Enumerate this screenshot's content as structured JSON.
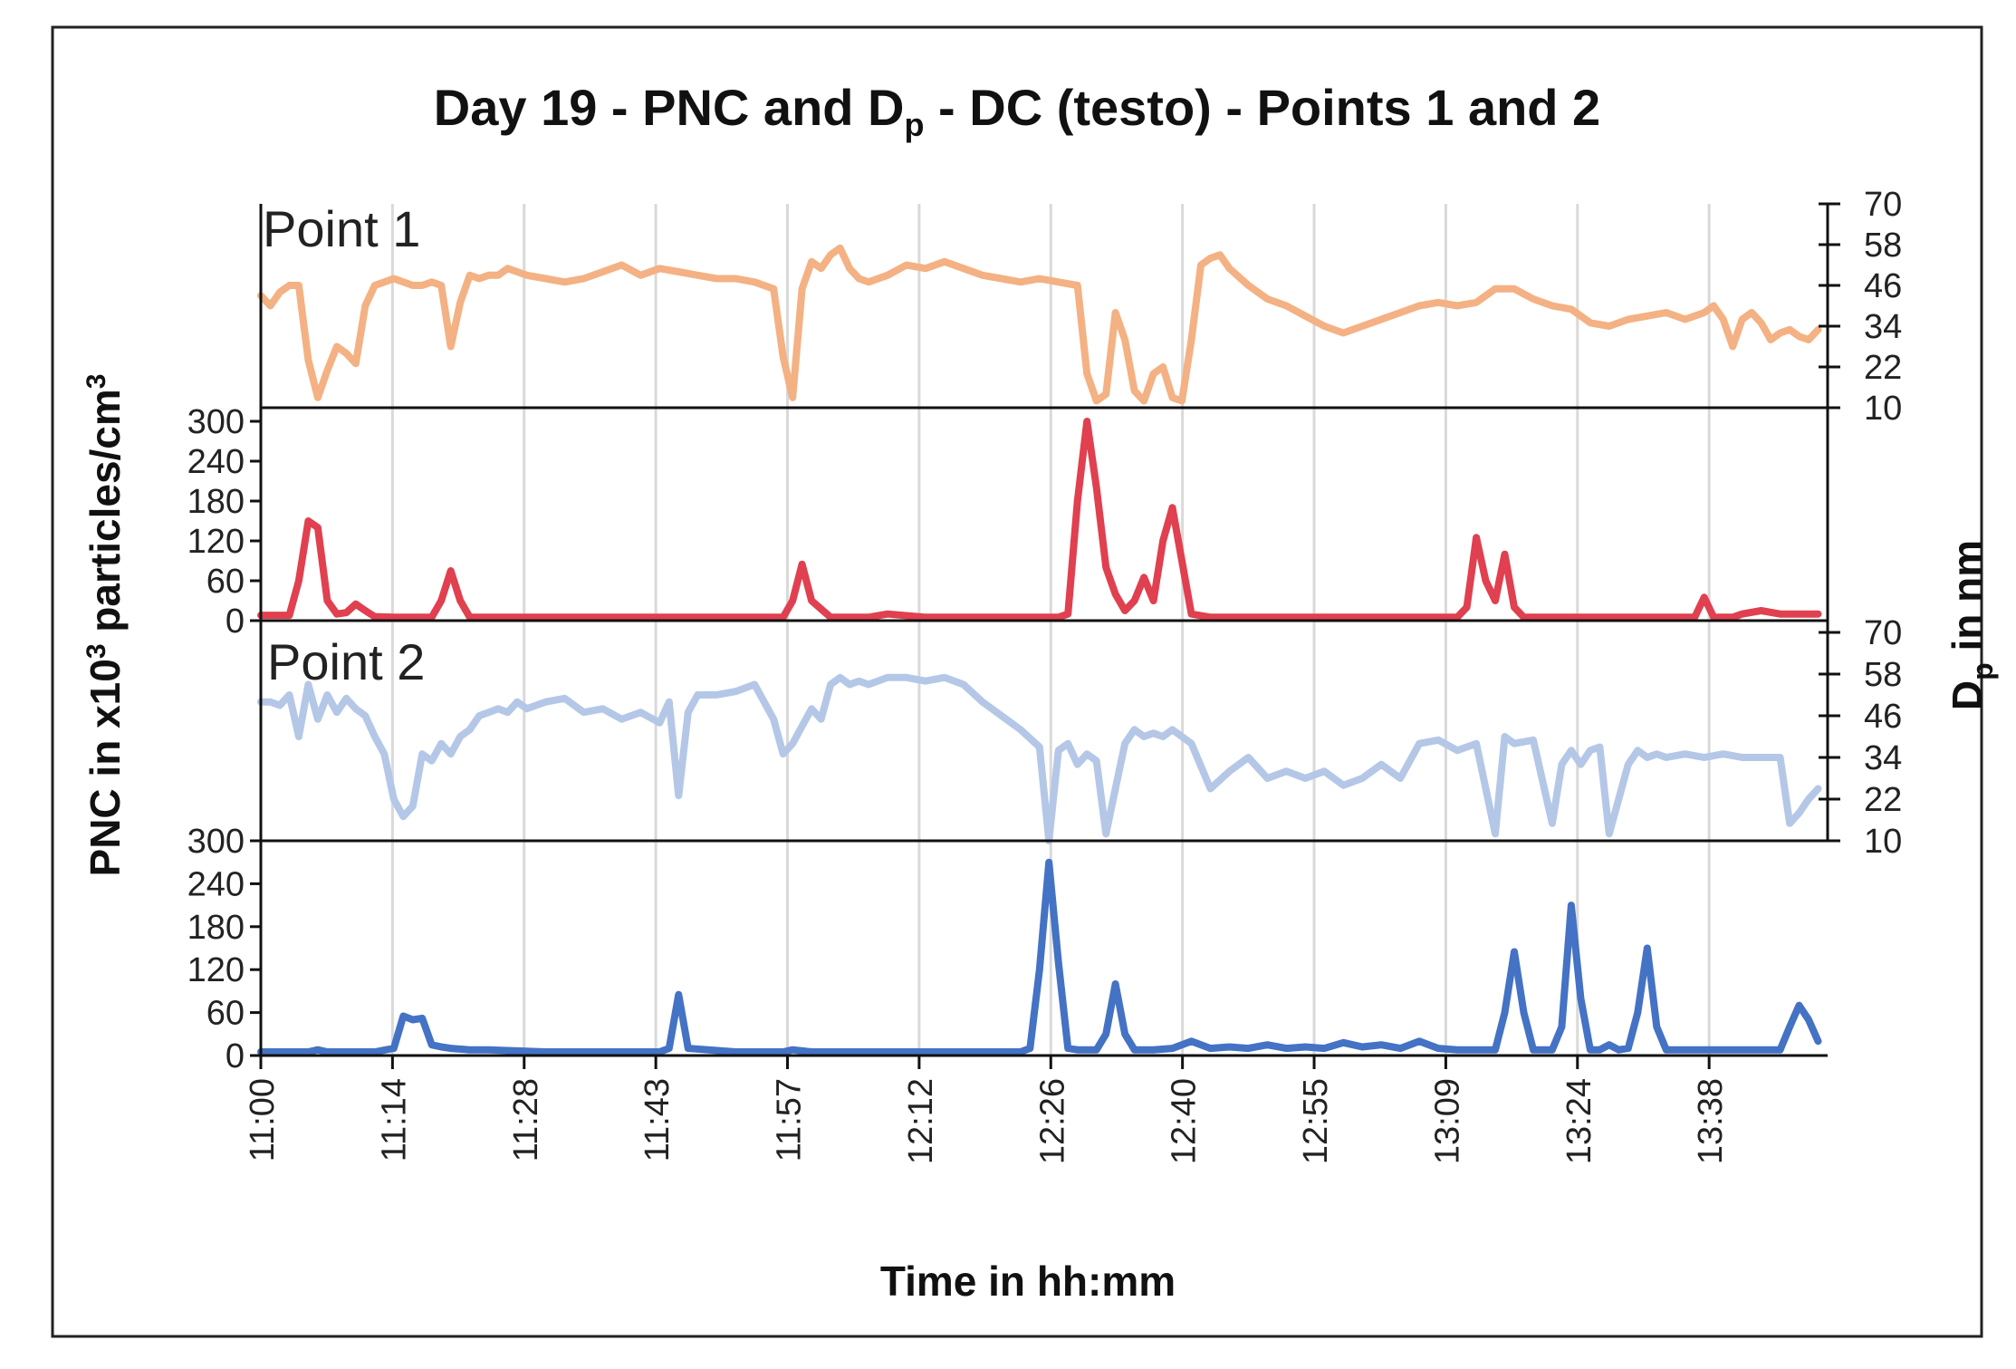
{
  "chart_data": {
    "type": "line",
    "title": "Day 19 - PNC and D",
    "title_subscript": "p",
    "title_suffix": " - DC (testo) - Points 1 and 2",
    "xlabel": "Time in hh:mm",
    "ylabel_left": "PNC in x10",
    "ylabel_left_sup": "3",
    "ylabel_left_mid": " particles/cm",
    "ylabel_left_sup2": "3",
    "ylabel_right": "D",
    "ylabel_right_sub": "p",
    "ylabel_right_suffix": " in nm",
    "x_ticks": [
      "11:00",
      "11:14",
      "11:28",
      "11:43",
      "11:57",
      "12:12",
      "12:26",
      "12:40",
      "12:55",
      "13:09",
      "13:24",
      "13:38"
    ],
    "x_range_minutes": [
      0,
      165
    ],
    "panel_labels": [
      "Point 1",
      "Point 2"
    ],
    "pnc_ticks": [
      "0",
      "60",
      "120",
      "180",
      "240",
      "300"
    ],
    "dp_ticks": [
      "10",
      "22",
      "34",
      "46",
      "58",
      "70"
    ],
    "pnc_range": [
      0,
      300
    ],
    "dp_range": [
      10,
      70
    ],
    "colors": {
      "dp_point1": "#f4b183",
      "pnc_point1": "#e0404f",
      "dp_point2": "#b4c7e7",
      "pnc_point2": "#4472c4"
    },
    "series": [
      {
        "name": "Dp Point 1",
        "panel": "dp1",
        "x": [
          0,
          1,
          2,
          3,
          4,
          5,
          6,
          7,
          8,
          9,
          10,
          11,
          12,
          13,
          14,
          15,
          16,
          17,
          18,
          19,
          20,
          21,
          22,
          23,
          24,
          25,
          26,
          27,
          28,
          30,
          32,
          34,
          36,
          38,
          40,
          42,
          44,
          46,
          48,
          50,
          52,
          54,
          55,
          56,
          57,
          58,
          59,
          60,
          61,
          62,
          63,
          64,
          66,
          68,
          70,
          72,
          74,
          76,
          78,
          80,
          82,
          84,
          86,
          87,
          88,
          89,
          90,
          91,
          92,
          93,
          94,
          95,
          96,
          97,
          98,
          99,
          100,
          101,
          102,
          104,
          106,
          108,
          110,
          112,
          114,
          116,
          118,
          120,
          122,
          124,
          126,
          128,
          130,
          132,
          134,
          136,
          138,
          140,
          142,
          144,
          146,
          148,
          150,
          152,
          153,
          154,
          155,
          156,
          157,
          158,
          159,
          160,
          161,
          162,
          163,
          164
        ],
        "values": [
          43,
          40,
          44,
          46,
          46,
          24,
          13,
          21,
          28,
          26,
          23,
          40,
          46,
          47,
          48,
          47,
          46,
          46,
          47,
          46,
          28,
          41,
          49,
          48,
          49,
          49,
          51,
          50,
          49,
          48,
          47,
          48,
          50,
          52,
          49,
          51,
          50,
          49,
          48,
          48,
          47,
          45,
          25,
          13,
          45,
          53,
          51,
          55,
          57,
          51,
          48,
          47,
          49,
          52,
          51,
          53,
          51,
          49,
          48,
          47,
          48,
          47,
          46,
          20,
          12,
          14,
          38,
          30,
          15,
          12,
          20,
          22,
          13,
          12,
          30,
          52,
          54,
          55,
          51,
          46,
          42,
          40,
          37,
          34,
          32,
          34,
          36,
          38,
          40,
          41,
          40,
          41,
          45,
          45,
          42,
          40,
          39,
          35,
          34,
          36,
          37,
          38,
          36,
          38,
          40,
          36,
          28,
          36,
          38,
          35,
          30,
          32,
          33,
          31,
          30,
          33
        ]
      },
      {
        "name": "PNC Point 1",
        "panel": "pnc1",
        "x": [
          0,
          3,
          4,
          5,
          6,
          7,
          8,
          9,
          10,
          11,
          12,
          14,
          16,
          18,
          19,
          20,
          21,
          22,
          24,
          30,
          40,
          50,
          52,
          54,
          55,
          56,
          57,
          58,
          60,
          62,
          64,
          66,
          70,
          80,
          84,
          85,
          86,
          87,
          88,
          89,
          90,
          91,
          92,
          93,
          94,
          95,
          96,
          97,
          98,
          100,
          110,
          120,
          126,
          127,
          128,
          129,
          130,
          131,
          132,
          133,
          134,
          140,
          150,
          151,
          152,
          153,
          154,
          155,
          156,
          158,
          160,
          162,
          164
        ],
        "values": [
          8,
          8,
          60,
          150,
          140,
          30,
          10,
          12,
          25,
          15,
          6,
          5,
          5,
          5,
          30,
          75,
          30,
          5,
          5,
          5,
          5,
          5,
          5,
          5,
          5,
          30,
          85,
          30,
          5,
          5,
          5,
          10,
          5,
          5,
          5,
          10,
          180,
          300,
          200,
          80,
          40,
          15,
          30,
          65,
          30,
          120,
          170,
          90,
          10,
          5,
          5,
          5,
          5,
          20,
          125,
          60,
          30,
          100,
          20,
          5,
          5,
          5,
          5,
          5,
          35,
          5,
          5,
          5,
          10,
          15,
          10,
          10,
          10
        ]
      },
      {
        "name": "Dp Point 2",
        "panel": "dp2",
        "x": [
          0,
          1,
          2,
          3,
          4,
          5,
          6,
          7,
          8,
          9,
          10,
          11,
          12,
          13,
          14,
          15,
          16,
          17,
          18,
          19,
          20,
          21,
          22,
          23,
          24,
          25,
          26,
          27,
          28,
          30,
          32,
          34,
          36,
          38,
          40,
          42,
          43,
          44,
          45,
          46,
          48,
          50,
          52,
          54,
          55,
          56,
          57,
          58,
          59,
          60,
          61,
          62,
          63,
          64,
          66,
          68,
          70,
          72,
          74,
          76,
          78,
          80,
          82,
          83,
          84,
          85,
          86,
          87,
          88,
          89,
          90,
          91,
          92,
          93,
          94,
          95,
          96,
          98,
          100,
          102,
          104,
          106,
          108,
          110,
          112,
          114,
          116,
          118,
          120,
          122,
          124,
          126,
          128,
          130,
          131,
          132,
          134,
          136,
          137,
          138,
          139,
          140,
          141,
          142,
          144,
          145,
          146,
          147,
          148,
          150,
          152,
          154,
          156,
          158,
          160,
          161,
          162,
          163,
          164
        ],
        "values": [
          50,
          50,
          49,
          52,
          40,
          55,
          45,
          52,
          47,
          51,
          48,
          46,
          40,
          35,
          22,
          17,
          20,
          35,
          33,
          38,
          35,
          40,
          42,
          46,
          47,
          48,
          47,
          50,
          48,
          50,
          51,
          47,
          48,
          45,
          47,
          44,
          50,
          23,
          47,
          52,
          52,
          53,
          55,
          45,
          35,
          38,
          43,
          48,
          45,
          55,
          57,
          55,
          56,
          55,
          57,
          57,
          56,
          57,
          55,
          50,
          46,
          42,
          37,
          10,
          36,
          38,
          32,
          35,
          33,
          12,
          25,
          38,
          42,
          40,
          41,
          40,
          42,
          38,
          25,
          30,
          34,
          28,
          30,
          28,
          30,
          26,
          28,
          32,
          28,
          38,
          39,
          36,
          38,
          12,
          40,
          38,
          39,
          15,
          32,
          36,
          32,
          36,
          37,
          12,
          32,
          36,
          34,
          35,
          34,
          35,
          34,
          35,
          34,
          34,
          34,
          15,
          18,
          22,
          25
        ]
      },
      {
        "name": "PNC Point 2",
        "panel": "pnc2",
        "x": [
          0,
          5,
          6,
          7,
          10,
          12,
          14,
          15,
          16,
          17,
          18,
          19,
          20,
          22,
          24,
          30,
          40,
          42,
          43,
          44,
          45,
          50,
          54,
          55,
          56,
          58,
          60,
          70,
          80,
          81,
          82,
          83,
          84,
          85,
          86,
          88,
          89,
          90,
          91,
          92,
          93,
          94,
          96,
          98,
          100,
          102,
          104,
          106,
          108,
          110,
          112,
          114,
          116,
          118,
          120,
          122,
          124,
          126,
          128,
          130,
          131,
          132,
          133,
          134,
          136,
          137,
          138,
          139,
          140,
          141,
          142,
          143,
          144,
          145,
          146,
          147,
          148,
          150,
          155,
          160,
          161,
          162,
          163,
          164
        ],
        "values": [
          5,
          5,
          8,
          5,
          5,
          5,
          10,
          55,
          50,
          52,
          15,
          12,
          10,
          8,
          8,
          5,
          5,
          5,
          10,
          85,
          10,
          5,
          5,
          5,
          8,
          5,
          5,
          5,
          5,
          10,
          120,
          270,
          130,
          10,
          8,
          8,
          30,
          100,
          30,
          8,
          8,
          8,
          10,
          20,
          10,
          12,
          10,
          15,
          10,
          12,
          10,
          18,
          12,
          15,
          10,
          20,
          10,
          8,
          8,
          8,
          60,
          145,
          60,
          8,
          8,
          40,
          210,
          80,
          8,
          8,
          15,
          8,
          10,
          60,
          150,
          40,
          8,
          8,
          8,
          8,
          40,
          70,
          50,
          20
        ]
      }
    ]
  }
}
